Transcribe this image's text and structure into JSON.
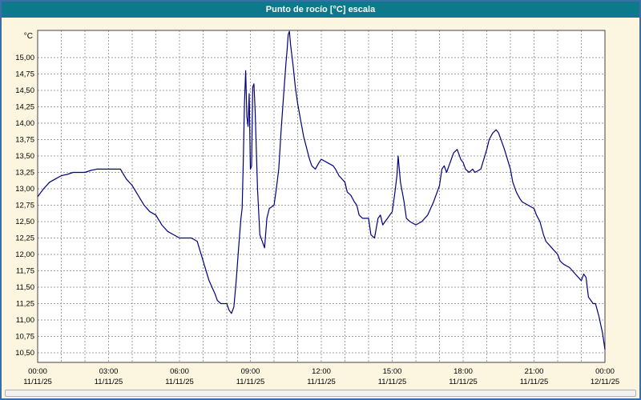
{
  "window": {
    "title": "Punto de rocío [°C] escala"
  },
  "colors": {
    "titlebar_bg": "#0d7a8c",
    "titlebar_text": "#ffffff",
    "window_border": "#3a6ea5",
    "background": "#fcf5e0",
    "plot_bg": "#ffffff",
    "grid": "#a0a0a0",
    "axis_border": "#444444",
    "line": "#000080",
    "scrollbar_bg": "#f2f2f2",
    "scrollbar_border": "#b0b0b0"
  },
  "chart_data": {
    "type": "line",
    "title": "Punto de rocío [°C] escala",
    "ylabel": "°C",
    "xlabel": "",
    "ylim": [
      10.35,
      15.41
    ],
    "x_range_hours": [
      0,
      24
    ],
    "grid": "on",
    "legend": "none",
    "yticks": [
      {
        "value": 15.0,
        "label": "15,00"
      },
      {
        "value": 14.75,
        "label": "14,75"
      },
      {
        "value": 14.5,
        "label": "14,50"
      },
      {
        "value": 14.25,
        "label": "14,25"
      },
      {
        "value": 14.0,
        "label": "14,00"
      },
      {
        "value": 13.75,
        "label": "13,75"
      },
      {
        "value": 13.5,
        "label": "13,50"
      },
      {
        "value": 13.25,
        "label": "13,25"
      },
      {
        "value": 13.0,
        "label": "13,00"
      },
      {
        "value": 12.75,
        "label": "12,75"
      },
      {
        "value": 12.5,
        "label": "12,50"
      },
      {
        "value": 12.25,
        "label": "12,25"
      },
      {
        "value": 12.0,
        "label": "12,00"
      },
      {
        "value": 11.75,
        "label": "11,75"
      },
      {
        "value": 11.5,
        "label": "11,50"
      },
      {
        "value": 11.25,
        "label": "11,25"
      },
      {
        "value": 11.0,
        "label": "11,00"
      },
      {
        "value": 10.75,
        "label": "10,75"
      },
      {
        "value": 10.5,
        "label": "10,50"
      }
    ],
    "xticks": [
      {
        "hour": 0,
        "time": "00:00",
        "date": "11/11/25"
      },
      {
        "hour": 3,
        "time": "03:00",
        "date": "11/11/25"
      },
      {
        "hour": 6,
        "time": "06:00",
        "date": "11/11/25"
      },
      {
        "hour": 9,
        "time": "09:00",
        "date": "11/11/25"
      },
      {
        "hour": 12,
        "time": "12:00",
        "date": "11/11/25"
      },
      {
        "hour": 15,
        "time": "15:00",
        "date": "11/11/25"
      },
      {
        "hour": 18,
        "time": "18:00",
        "date": "11/11/25"
      },
      {
        "hour": 21,
        "time": "21:00",
        "date": "11/11/25"
      },
      {
        "hour": 24,
        "time": "00:00",
        "date": "12/11/25"
      }
    ],
    "series": [
      {
        "name": "Punto de rocío",
        "color": "#000080",
        "points": [
          [
            0,
            12.88
          ],
          [
            0.25,
            13.0
          ],
          [
            0.5,
            13.1
          ],
          [
            0.75,
            13.15
          ],
          [
            1,
            13.2
          ],
          [
            1.25,
            13.22
          ],
          [
            1.5,
            13.25
          ],
          [
            2,
            13.25
          ],
          [
            2.25,
            13.28
          ],
          [
            2.5,
            13.3
          ],
          [
            3,
            13.3
          ],
          [
            3.25,
            13.3
          ],
          [
            3.5,
            13.3
          ],
          [
            3.75,
            13.15
          ],
          [
            4,
            13.05
          ],
          [
            4.25,
            12.9
          ],
          [
            4.5,
            12.75
          ],
          [
            4.75,
            12.65
          ],
          [
            5,
            12.6
          ],
          [
            5.25,
            12.45
          ],
          [
            5.5,
            12.35
          ],
          [
            5.75,
            12.3
          ],
          [
            6,
            12.25
          ],
          [
            6.25,
            12.25
          ],
          [
            6.5,
            12.25
          ],
          [
            6.75,
            12.2
          ],
          [
            7,
            11.9
          ],
          [
            7.25,
            11.6
          ],
          [
            7.5,
            11.4
          ],
          [
            7.6,
            11.3
          ],
          [
            7.75,
            11.25
          ],
          [
            8,
            11.25
          ],
          [
            8.1,
            11.15
          ],
          [
            8.2,
            11.1
          ],
          [
            8.3,
            11.2
          ],
          [
            8.4,
            11.6
          ],
          [
            8.5,
            12.1
          ],
          [
            8.6,
            12.55
          ],
          [
            8.65,
            12.7
          ],
          [
            8.7,
            13.4
          ],
          [
            8.75,
            14.3
          ],
          [
            8.8,
            14.8
          ],
          [
            8.85,
            14.1
          ],
          [
            8.9,
            13.95
          ],
          [
            8.95,
            14.45
          ],
          [
            9,
            13.3
          ],
          [
            9.05,
            13.35
          ],
          [
            9.1,
            14.55
          ],
          [
            9.15,
            14.6
          ],
          [
            9.2,
            14.2
          ],
          [
            9.3,
            13.0
          ],
          [
            9.4,
            12.3
          ],
          [
            9.5,
            12.2
          ],
          [
            9.55,
            12.15
          ],
          [
            9.6,
            12.1
          ],
          [
            9.7,
            12.55
          ],
          [
            9.8,
            12.7
          ],
          [
            10,
            12.75
          ],
          [
            10.1,
            13.0
          ],
          [
            10.2,
            13.3
          ],
          [
            10.3,
            13.9
          ],
          [
            10.4,
            14.4
          ],
          [
            10.5,
            14.9
          ],
          [
            10.55,
            15.1
          ],
          [
            10.6,
            15.35
          ],
          [
            10.65,
            15.4
          ],
          [
            10.7,
            15.2
          ],
          [
            10.8,
            14.9
          ],
          [
            10.9,
            14.55
          ],
          [
            11,
            14.3
          ],
          [
            11.1,
            14.1
          ],
          [
            11.25,
            13.8
          ],
          [
            11.5,
            13.45
          ],
          [
            11.6,
            13.35
          ],
          [
            11.75,
            13.3
          ],
          [
            11.9,
            13.4
          ],
          [
            12,
            13.45
          ],
          [
            12.25,
            13.4
          ],
          [
            12.5,
            13.35
          ],
          [
            12.6,
            13.3
          ],
          [
            12.75,
            13.2
          ],
          [
            13,
            13.1
          ],
          [
            13.1,
            12.95
          ],
          [
            13.25,
            12.9
          ],
          [
            13.4,
            12.8
          ],
          [
            13.5,
            12.75
          ],
          [
            13.6,
            12.6
          ],
          [
            13.75,
            12.55
          ],
          [
            14,
            12.55
          ],
          [
            14.1,
            12.3
          ],
          [
            14.25,
            12.25
          ],
          [
            14.4,
            12.55
          ],
          [
            14.5,
            12.6
          ],
          [
            14.6,
            12.45
          ],
          [
            14.7,
            12.5
          ],
          [
            14.8,
            12.55
          ],
          [
            15,
            12.65
          ],
          [
            15.1,
            12.9
          ],
          [
            15.2,
            13.2
          ],
          [
            15.25,
            13.5
          ],
          [
            15.35,
            13.1
          ],
          [
            15.5,
            12.8
          ],
          [
            15.6,
            12.55
          ],
          [
            15.75,
            12.5
          ],
          [
            16,
            12.45
          ],
          [
            16.25,
            12.5
          ],
          [
            16.5,
            12.6
          ],
          [
            16.75,
            12.8
          ],
          [
            17,
            13.05
          ],
          [
            17.1,
            13.3
          ],
          [
            17.2,
            13.35
          ],
          [
            17.3,
            13.25
          ],
          [
            17.4,
            13.35
          ],
          [
            17.6,
            13.55
          ],
          [
            17.75,
            13.6
          ],
          [
            17.9,
            13.45
          ],
          [
            18,
            13.4
          ],
          [
            18.1,
            13.3
          ],
          [
            18.25,
            13.25
          ],
          [
            18.4,
            13.3
          ],
          [
            18.5,
            13.25
          ],
          [
            18.75,
            13.3
          ],
          [
            19,
            13.6
          ],
          [
            19.1,
            13.75
          ],
          [
            19.25,
            13.85
          ],
          [
            19.4,
            13.9
          ],
          [
            19.5,
            13.85
          ],
          [
            19.75,
            13.6
          ],
          [
            20,
            13.3
          ],
          [
            20.1,
            13.1
          ],
          [
            20.25,
            12.95
          ],
          [
            20.4,
            12.85
          ],
          [
            20.5,
            12.8
          ],
          [
            20.75,
            12.75
          ],
          [
            21,
            12.7
          ],
          [
            21.1,
            12.6
          ],
          [
            21.25,
            12.5
          ],
          [
            21.4,
            12.3
          ],
          [
            21.5,
            12.2
          ],
          [
            21.75,
            12.1
          ],
          [
            22,
            12.0
          ],
          [
            22.1,
            11.9
          ],
          [
            22.25,
            11.85
          ],
          [
            22.5,
            11.8
          ],
          [
            22.75,
            11.7
          ],
          [
            23,
            11.6
          ],
          [
            23.1,
            11.7
          ],
          [
            23.2,
            11.65
          ],
          [
            23.3,
            11.35
          ],
          [
            23.4,
            11.3
          ],
          [
            23.5,
            11.25
          ],
          [
            23.6,
            11.25
          ],
          [
            23.75,
            11.05
          ],
          [
            23.9,
            10.8
          ],
          [
            24,
            10.55
          ]
        ]
      }
    ]
  }
}
